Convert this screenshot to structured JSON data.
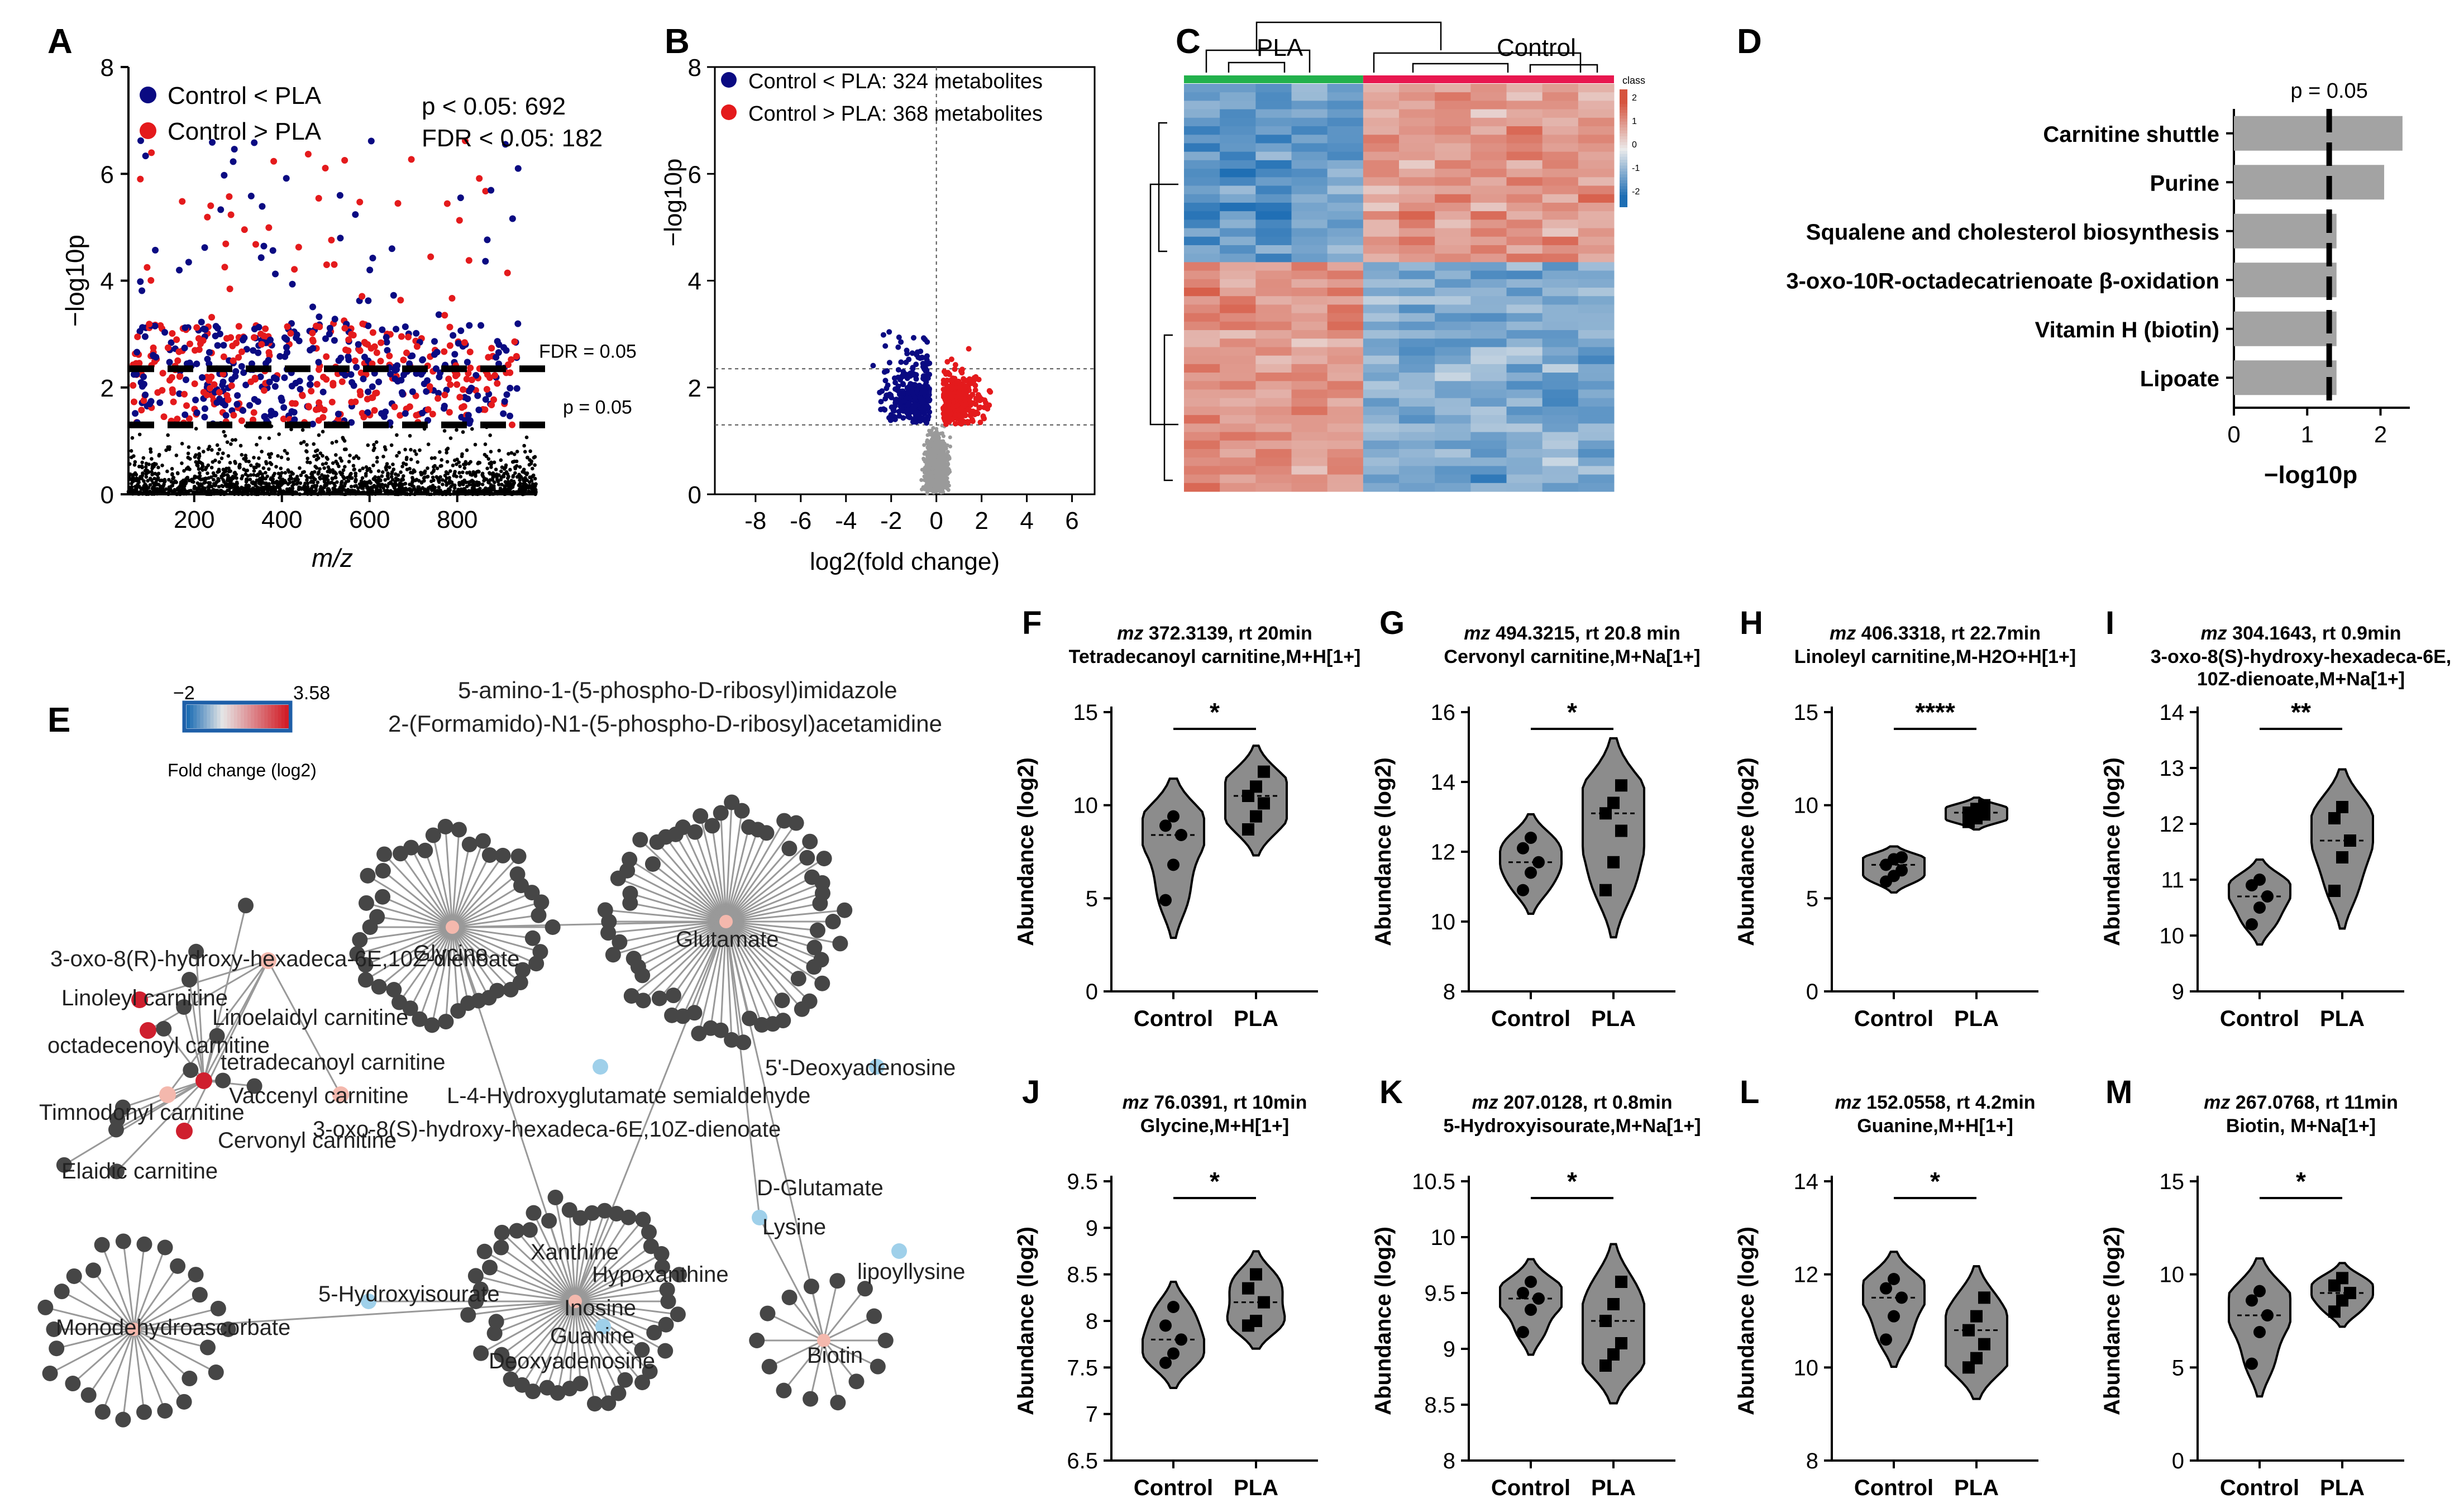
{
  "chart_data": [
    {
      "panel": "A",
      "type": "scatter",
      "xlabel": "m/z",
      "ylabel": "−log10p",
      "xlim": [
        50,
        980
      ],
      "ylim": [
        0,
        8
      ],
      "xticks": [
        200,
        400,
        600,
        800
      ],
      "yticks": [
        0,
        2,
        4,
        6,
        8
      ],
      "legend": [
        {
          "label": "Control < PLA",
          "color": "#0a0a82"
        },
        {
          "label": "Control > PLA",
          "color": "#e41a1c"
        }
      ],
      "annot_p": "p < 0.05: 692",
      "annot_fdr": "FDR < 0.05: 182",
      "fdr_label": "FDR = 0.05",
      "fdr_value": 2.35,
      "p_label": "p = 0.05",
      "p_value": 1.3
    },
    {
      "panel": "B",
      "type": "scatter",
      "xlabel": "log2(fold change)",
      "ylabel": "−log10p",
      "xlim": [
        -9.8,
        7
      ],
      "ylim": [
        0,
        8
      ],
      "xticks": [
        -8,
        -6,
        -4,
        -2,
        0,
        2,
        4,
        6
      ],
      "yticks": [
        0,
        2,
        4,
        6,
        8
      ],
      "legend": [
        {
          "label": "Control < PLA: 324 metabolites",
          "color": "#0a0a82"
        },
        {
          "label": "Control > PLA: 368 metabolites",
          "color": "#e41a1c"
        }
      ],
      "hlines": [
        2.35,
        1.3
      ]
    },
    {
      "panel": "C",
      "type": "heatmap",
      "groups": [
        "PLA",
        "Control"
      ],
      "group_colors": [
        "#22b14c",
        "#e8174f"
      ],
      "legend_title": "class",
      "scale": [
        2,
        1,
        0,
        -1,
        -2
      ],
      "n_rows": 48,
      "n_cols": 12
    },
    {
      "panel": "D",
      "type": "bar",
      "orientation": "horizontal",
      "categories": [
        "Carnitine shuttle",
        "Purine",
        "Squalene and cholesterol biosynthesis",
        "3-oxo-10R-octadecatrienoate β-oxidation",
        "Vitamin H (biotin)",
        "Lipoate"
      ],
      "values": [
        2.3,
        2.05,
        1.4,
        1.4,
        1.4,
        1.4
      ],
      "xlabel": "−log10p",
      "xlim": [
        0,
        2.4
      ],
      "xticks": [
        0,
        1,
        2
      ],
      "threshold_label": "p = 0.05",
      "threshold": 1.3
    },
    {
      "panel": "E",
      "type": "network",
      "colorbar_min": "−2",
      "colorbar_max": "3.58",
      "colorbar_label": "Fold change (log2)",
      "hubs": [
        "Glycine",
        "Glutamate",
        "Monodehydroascorbate",
        "Guanine",
        "Biotin"
      ],
      "labels": [
        "5-amino-1-(5-phospho-D-ribosyl)imidazole",
        "2-(Formamido)-N1-(5-phospho-D-ribosyl)acetamidine",
        "Glycine",
        "Glutamate",
        "3-oxo-8(R)-hydroxy-hexadeca-6E,10Z-dienoate",
        "Linoleyl carnitine",
        "Linoelaidyl carnitine",
        "octadecenoyl carnitine",
        "tetradecanoyl carnitine",
        "5'-Deoxyadenosine",
        "Vaccenyl carnitine",
        "L-4-Hydroxyglutamate semialdehyde",
        "Timnodonyl carnitine",
        "3-oxo-8(S)-hydroxy-hexadeca-6E,10Z-dienoate",
        "Cervonyl carnitine",
        "Elaidic carnitine",
        "D-Glutamate",
        "Lysine",
        "Xanthine",
        "Hypoxanthine",
        "5-Hydroxyisourate",
        "lipoyllysine",
        "Monodehydroascorbate",
        "Guanine",
        "Inosine",
        "Deoxyadenosine",
        "Biotin"
      ]
    },
    {
      "panel": "F",
      "type": "violin",
      "title_mz": "mz",
      "title_rest": " 372.3139, rt 20min",
      "subtitle": "Tetradecanoyl carnitine,M+H[1+]",
      "ylabel": "Abundance (log2)",
      "ylim": [
        0,
        15
      ],
      "yticks": [
        0,
        5,
        10,
        15
      ],
      "categories": [
        "Control",
        "PLA"
      ],
      "significance": "*",
      "control": [
        4.9,
        6.8,
        8.4,
        8.9,
        9.4
      ],
      "pla": [
        8.7,
        9.4,
        10.1,
        10.5,
        11.0,
        11.8
      ]
    },
    {
      "panel": "G",
      "type": "violin",
      "title_mz": "mz",
      "title_rest": " 494.3215, rt 20.8 min",
      "subtitle": "Cervonyl carnitine,M+Na[1+]",
      "ylabel": "Abundance (log2)",
      "ylim": [
        8,
        16
      ],
      "yticks": [
        8,
        10,
        12,
        14,
        16
      ],
      "categories": [
        "Control",
        "PLA"
      ],
      "significance": "*",
      "control": [
        10.9,
        11.4,
        11.7,
        12.1,
        12.4
      ],
      "pla": [
        10.9,
        11.7,
        12.6,
        13.1,
        13.4,
        13.9
      ]
    },
    {
      "panel": "H",
      "type": "violin",
      "title_mz": "mz",
      "title_rest": " 406.3318, rt 22.7min",
      "subtitle": "Linoleyl carnitine,M-H2O+H[1+]",
      "ylabel": "Abundance (log2)",
      "ylim": [
        0,
        15
      ],
      "yticks": [
        0,
        5,
        10,
        15
      ],
      "categories": [
        "Control",
        "PLA"
      ],
      "significance": "****",
      "control": [
        5.9,
        6.2,
        6.5,
        6.8,
        7.1,
        7.2
      ],
      "pla": [
        9.1,
        9.3,
        9.5,
        9.6,
        9.8,
        10.0
      ]
    },
    {
      "panel": "I",
      "type": "violin",
      "title_mz": "mz",
      "title_rest": " 304.1643, rt 0.9min",
      "subtitle": "3-oxo-8(S)-hydroxy-hexadeca-6E,",
      "subtitle2": "10Z-dienoate,M+Na[1+]",
      "ylabel": "Abundance (log2)",
      "ylim": [
        9,
        14
      ],
      "yticks": [
        9,
        10,
        11,
        12,
        13,
        14
      ],
      "categories": [
        "Control",
        "PLA"
      ],
      "significance": "**",
      "control": [
        10.2,
        10.5,
        10.7,
        10.9,
        11.0
      ],
      "pla": [
        10.8,
        11.4,
        11.7,
        12.1,
        12.3
      ]
    },
    {
      "panel": "J",
      "type": "violin",
      "title_mz": "mz",
      "title_rest": " 76.0391, rt 10min",
      "subtitle": "Glycine,M+H[1+]",
      "ylabel": "Abundance (log2)",
      "ylim": [
        6.5,
        9.5
      ],
      "yticks": [
        6.5,
        7.0,
        7.5,
        8.0,
        8.5,
        9.0,
        9.5
      ],
      "categories": [
        "Control",
        "PLA"
      ],
      "significance": "*",
      "control": [
        7.55,
        7.65,
        7.8,
        7.95,
        8.15
      ],
      "pla": [
        7.95,
        8.0,
        8.2,
        8.35,
        8.5
      ]
    },
    {
      "panel": "K",
      "type": "violin",
      "title_mz": "mz",
      "title_rest": " 207.0128, rt 0.8min",
      "subtitle": "5-Hydroxyisourate,M+Na[1+]",
      "ylabel": "Abundance (log2)",
      "ylim": [
        8.0,
        10.5
      ],
      "yticks": [
        8.0,
        8.5,
        9.0,
        9.5,
        10.0,
        10.5
      ],
      "categories": [
        "Control",
        "PLA"
      ],
      "significance": "*",
      "control": [
        9.15,
        9.35,
        9.45,
        9.5,
        9.6
      ],
      "pla": [
        8.85,
        8.95,
        9.05,
        9.25,
        9.4,
        9.6
      ]
    },
    {
      "panel": "L",
      "type": "violin",
      "title_mz": "mz",
      "title_rest": " 152.0558, rt 4.2min",
      "subtitle": "Guanine,M+H[1+]",
      "ylabel": "Abundance (log2)",
      "ylim": [
        8,
        14
      ],
      "yticks": [
        8,
        10,
        12,
        14
      ],
      "categories": [
        "Control",
        "PLA"
      ],
      "significance": "*",
      "control": [
        10.6,
        11.1,
        11.5,
        11.7,
        11.9
      ],
      "pla": [
        10.0,
        10.2,
        10.5,
        10.8,
        11.1,
        11.5
      ]
    },
    {
      "panel": "M",
      "type": "violin",
      "title_mz": "mz",
      "title_rest": " 267.0768, rt 11min",
      "subtitle": "Biotin, M+Na[1+]",
      "ylabel": "Abundance (log2)",
      "ylim": [
        0,
        15
      ],
      "yticks": [
        0,
        5,
        10,
        15
      ],
      "categories": [
        "Control",
        "PLA"
      ],
      "significance": "*",
      "control": [
        5.2,
        6.9,
        7.8,
        8.6,
        9.1
      ],
      "pla": [
        8.0,
        8.6,
        9.0,
        9.4,
        9.8
      ]
    }
  ]
}
